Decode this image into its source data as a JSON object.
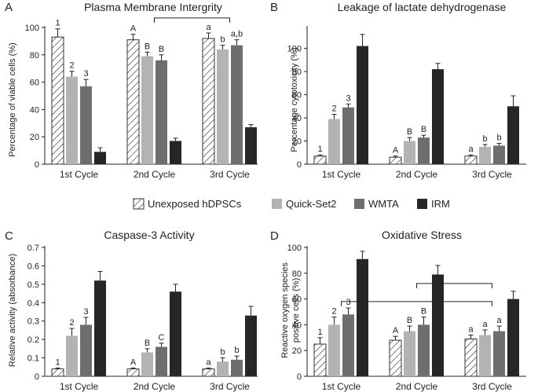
{
  "legend": {
    "items": [
      {
        "name": "Unexposed hDPSCs",
        "style": "hatch"
      },
      {
        "name": "Quick-Set2",
        "color": "#b3b3b3"
      },
      {
        "name": "WMTA",
        "color": "#6e6e6e"
      },
      {
        "name": "IRM",
        "color": "#262626"
      }
    ]
  },
  "chart_data": [
    {
      "type": "bar",
      "panel": "A",
      "title": "Plasma Membrane Intergrity",
      "ylabel": "Percentage of viable cells (%)",
      "xlabel": "",
      "categories": [
        "1st Cycle",
        "2nd Cycle",
        "3rd Cycle"
      ],
      "ylim": [
        0,
        100
      ],
      "yticks": [
        0,
        20,
        40,
        60,
        80,
        100
      ],
      "tick_labels": [
        "0",
        "20",
        "40",
        "60",
        "80",
        "100"
      ],
      "series": [
        {
          "name": "Unexposed hDPSCs",
          "values": [
            93,
            91,
            92
          ],
          "errors": [
            6,
            4,
            4
          ],
          "labels": [
            "1",
            "A",
            "a"
          ]
        },
        {
          "name": "Quick-Set2",
          "values": [
            64,
            79,
            84
          ],
          "errors": [
            4,
            3,
            3
          ],
          "labels": [
            "2",
            "B",
            "b"
          ]
        },
        {
          "name": "WMTA",
          "values": [
            57,
            76,
            87
          ],
          "errors": [
            5,
            4,
            4
          ],
          "labels": [
            "3",
            "B",
            "a,b"
          ]
        },
        {
          "name": "IRM",
          "values": [
            9,
            17,
            27
          ],
          "errors": [
            3,
            2,
            2
          ],
          "labels": [
            "",
            "",
            ""
          ]
        }
      ],
      "brackets": [
        {
          "from": 1,
          "to": 2,
          "level": 107
        }
      ]
    },
    {
      "type": "bar",
      "panel": "B",
      "title": "Leakage of lactate dehydrogenase",
      "ylabel": "Percentage cytotoxicity (%)",
      "xlabel": "",
      "categories": [
        "1st Cycle",
        "2nd Cycle",
        "3rd Cycle"
      ],
      "ylim": [
        0,
        118
      ],
      "yticks": [
        0,
        20,
        40,
        60,
        80,
        100
      ],
      "tick_labels": [
        "0",
        "20",
        "40",
        "60",
        "80",
        "100"
      ],
      "series": [
        {
          "name": "Unexposed hDPSCs",
          "values": [
            7,
            6,
            7
          ],
          "errors": [
            1,
            1,
            1
          ],
          "labels": [
            "1",
            "A",
            "a"
          ]
        },
        {
          "name": "Quick-Set2",
          "values": [
            39,
            20,
            15
          ],
          "errors": [
            4,
            3,
            2
          ],
          "labels": [
            "2",
            "B",
            "b"
          ]
        },
        {
          "name": "WMTA",
          "values": [
            49,
            23,
            16
          ],
          "errors": [
            3,
            2,
            2
          ],
          "labels": [
            "3",
            "B",
            "b"
          ]
        },
        {
          "name": "IRM",
          "values": [
            102,
            82,
            50
          ],
          "errors": [
            10,
            5,
            9
          ],
          "labels": [
            "",
            "",
            ""
          ]
        }
      ],
      "brackets": []
    },
    {
      "type": "bar",
      "panel": "C",
      "title": "Caspase-3 Activity",
      "ylabel": "Relative activity (absorbance)",
      "xlabel": "",
      "categories": [
        "1st Cycle",
        "2nd Cycle",
        "3rd Cycle"
      ],
      "ylim": [
        0,
        0.7
      ],
      "yticks": [
        0,
        0.1,
        0.2,
        0.3,
        0.4,
        0.5,
        0.6,
        0.7
      ],
      "tick_labels": [
        "0",
        "0.1",
        "0.2",
        "0.3",
        "0.4",
        "0.5",
        "0.6",
        "0.7"
      ],
      "series": [
        {
          "name": "Unexposed hDPSCs",
          "values": [
            0.04,
            0.04,
            0.04
          ],
          "errors": [
            0.005,
            0.005,
            0.005
          ],
          "labels": [
            "1",
            "A",
            "a"
          ]
        },
        {
          "name": "Quick-Set2",
          "values": [
            0.22,
            0.13,
            0.08
          ],
          "errors": [
            0.04,
            0.02,
            0.02
          ],
          "labels": [
            "2",
            "B",
            "b"
          ]
        },
        {
          "name": "WMTA",
          "values": [
            0.28,
            0.16,
            0.09
          ],
          "errors": [
            0.04,
            0.02,
            0.02
          ],
          "labels": [
            "3",
            "C",
            "b"
          ]
        },
        {
          "name": "IRM",
          "values": [
            0.52,
            0.46,
            0.33
          ],
          "errors": [
            0.05,
            0.04,
            0.05
          ],
          "labels": [
            "",
            "",
            ""
          ]
        }
      ],
      "brackets": []
    },
    {
      "type": "bar",
      "panel": "D",
      "title": "Oxidative Stress",
      "ylabel": "Reactive oxygen species positive cells (%)",
      "ylabel_lines": [
        "Reactive oxygen species",
        "positive cells (%)"
      ],
      "xlabel": "",
      "categories": [
        "1st Cycle",
        "2nd Cycle",
        "3rd Cycle"
      ],
      "ylim": [
        0,
        100
      ],
      "yticks": [
        0,
        20,
        40,
        60,
        80,
        100
      ],
      "tick_labels": [
        "0",
        "20",
        "40",
        "60",
        "80",
        "100"
      ],
      "series": [
        {
          "name": "Unexposed hDPSCs",
          "values": [
            25,
            28,
            29
          ],
          "errors": [
            5,
            3,
            3
          ],
          "labels": [
            "1",
            "A",
            "a"
          ]
        },
        {
          "name": "Quick-Set2",
          "values": [
            40,
            35,
            32
          ],
          "errors": [
            6,
            4,
            4
          ],
          "labels": [
            "2",
            "B",
            "a"
          ]
        },
        {
          "name": "WMTA",
          "values": [
            48,
            40,
            35
          ],
          "errors": [
            5,
            6,
            4
          ],
          "labels": [
            "3",
            "B",
            "a"
          ]
        },
        {
          "name": "IRM",
          "values": [
            91,
            79,
            60
          ],
          "errors": [
            6,
            7,
            6
          ],
          "labels": [
            "",
            "",
            ""
          ]
        }
      ],
      "brackets": [
        {
          "from": 0,
          "to": 2,
          "level": 58
        },
        {
          "from": 1,
          "to": 2,
          "level": 72
        }
      ]
    }
  ]
}
